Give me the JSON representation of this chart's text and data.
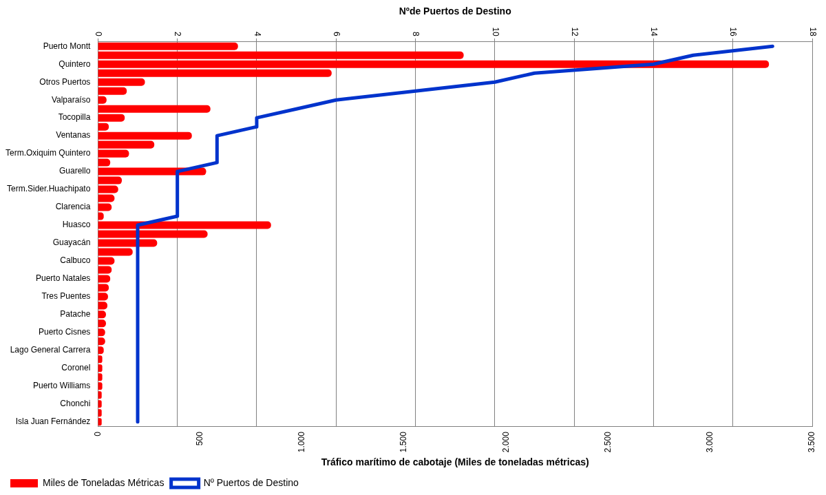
{
  "chart_data": {
    "type": "bar",
    "orientation": "horizontal",
    "categories": [
      "Puerto Montt",
      null,
      "Quintero",
      null,
      "Otros Puertos",
      null,
      "Valparaíso",
      null,
      "Tocopilla",
      null,
      "Ventanas",
      null,
      "Term.Oxiquim Quintero",
      null,
      "Guarello",
      null,
      "Term.Sider.Huachipato",
      null,
      "Clarencia",
      null,
      "Huasco",
      null,
      "Guayacán",
      null,
      "Calbuco",
      null,
      "Puerto Natales",
      null,
      "Tres Puentes",
      null,
      "Patache",
      null,
      "Puerto Cisnes",
      null,
      "Lago General Carrera",
      null,
      "Coronel",
      null,
      "Puerto Williams",
      null,
      "Chonchi",
      null,
      "Isla Juan Fernández"
    ],
    "series": [
      {
        "name": "Miles de Toneladas Métricas",
        "type": "bar",
        "color": "#ff0000",
        "values": [
          686,
          1792,
          3288,
          1145,
          230,
          141,
          42,
          551,
          131,
          53,
          460,
          276,
          152,
          60,
          530,
          117,
          99,
          81,
          67,
          28,
          848,
          537,
          290,
          170,
          81,
          67,
          60,
          53,
          49,
          46,
          39,
          39,
          35,
          35,
          28,
          21,
          21,
          21,
          21,
          18,
          18,
          18,
          18
        ]
      },
      {
        "name": "Nº Puertos de Destino",
        "type": "line",
        "axis": "x2",
        "color": "#0033cc",
        "values": [
          17,
          15,
          14,
          11,
          10,
          8,
          6,
          5,
          4,
          4,
          3,
          3,
          3,
          3,
          2,
          2,
          2,
          2,
          2,
          2,
          1,
          1,
          1,
          1,
          1,
          1,
          1,
          1,
          1,
          1,
          1,
          1,
          1,
          1,
          1,
          1,
          1,
          1,
          1,
          1,
          1,
          1,
          1
        ]
      }
    ],
    "xlabel": "Tráfico marítimo de cabotaje (Miles de toneladas métricas)",
    "x2label": "Nºde Puertos de Destino",
    "xlim": [
      0,
      3500
    ],
    "xticks": [
      0,
      500,
      {
        "value": 1000,
        "label": "1.000"
      },
      {
        "value": 1500,
        "label": "1.500"
      },
      {
        "value": 2000,
        "label": "2.000"
      },
      {
        "value": 2500,
        "label": "2.500"
      },
      {
        "value": 3000,
        "label": "3.000"
      },
      {
        "value": 3500,
        "label": "3.500"
      }
    ],
    "x2lim": [
      0,
      18
    ],
    "x2ticks": [
      0,
      2,
      4,
      6,
      8,
      10,
      12,
      14,
      16,
      18
    ],
    "grid": "x",
    "legend": "bottom left",
    "marker": "none",
    "line_style": "solid"
  }
}
